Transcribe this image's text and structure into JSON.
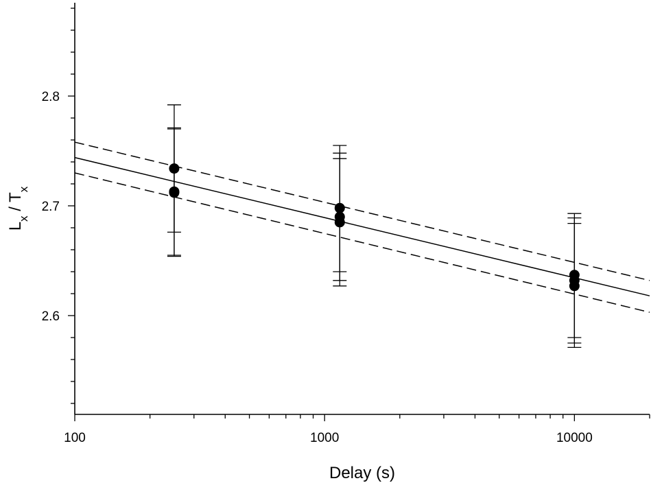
{
  "chart_data": {
    "type": "scatter",
    "title": "",
    "xlabel": "Delay (s)",
    "ylabel": {
      "base1": "L",
      "sub1": "x",
      "mid": " / ",
      "base2": "T",
      "sub2": "x"
    },
    "xscale": "log",
    "xlim": [
      100,
      20000
    ],
    "ylim": [
      2.51,
      2.885
    ],
    "xticks": [
      {
        "value": 100,
        "label": "100"
      },
      {
        "value": 1000,
        "label": "1000"
      },
      {
        "value": 10000,
        "label": "10000"
      }
    ],
    "yticks": [
      {
        "value": 2.6,
        "label": "2.6"
      },
      {
        "value": 2.7,
        "label": "2.7"
      },
      {
        "value": 2.8,
        "label": "2.8"
      }
    ],
    "grid": false,
    "legend": "none",
    "points": [
      {
        "x": 250,
        "y": 2.734,
        "yerr_low": 2.676,
        "yerr_high": 2.792
      },
      {
        "x": 250,
        "y": 2.713,
        "yerr_low": 2.655,
        "yerr_high": 2.771
      },
      {
        "x": 250,
        "y": 2.712,
        "yerr_low": 2.654,
        "yerr_high": 2.77
      },
      {
        "x": 1150,
        "y": 2.698,
        "yerr_low": 2.64,
        "yerr_high": 2.755
      },
      {
        "x": 1150,
        "y": 2.69,
        "yerr_low": 2.632,
        "yerr_high": 2.748
      },
      {
        "x": 1150,
        "y": 2.685,
        "yerr_low": 2.627,
        "yerr_high": 2.743
      },
      {
        "x": 10000,
        "y": 2.637,
        "yerr_low": 2.58,
        "yerr_high": 2.693
      },
      {
        "x": 10000,
        "y": 2.632,
        "yerr_low": 2.575,
        "yerr_high": 2.689
      },
      {
        "x": 10000,
        "y": 2.627,
        "yerr_low": 2.571,
        "yerr_high": 2.684
      }
    ],
    "fit": {
      "style": "solid",
      "x": [
        100,
        20000
      ],
      "y": [
        2.744,
        2.618
      ]
    },
    "confidence_band": [
      {
        "style": "dashed",
        "x": [
          100,
          20000
        ],
        "y": [
          2.758,
          2.632
        ]
      },
      {
        "style": "dashed",
        "x": [
          100,
          20000
        ],
        "y": [
          2.73,
          2.603
        ]
      }
    ],
    "colors": {
      "marker": "#000000",
      "line": "#000000",
      "background": "#ffffff"
    }
  }
}
